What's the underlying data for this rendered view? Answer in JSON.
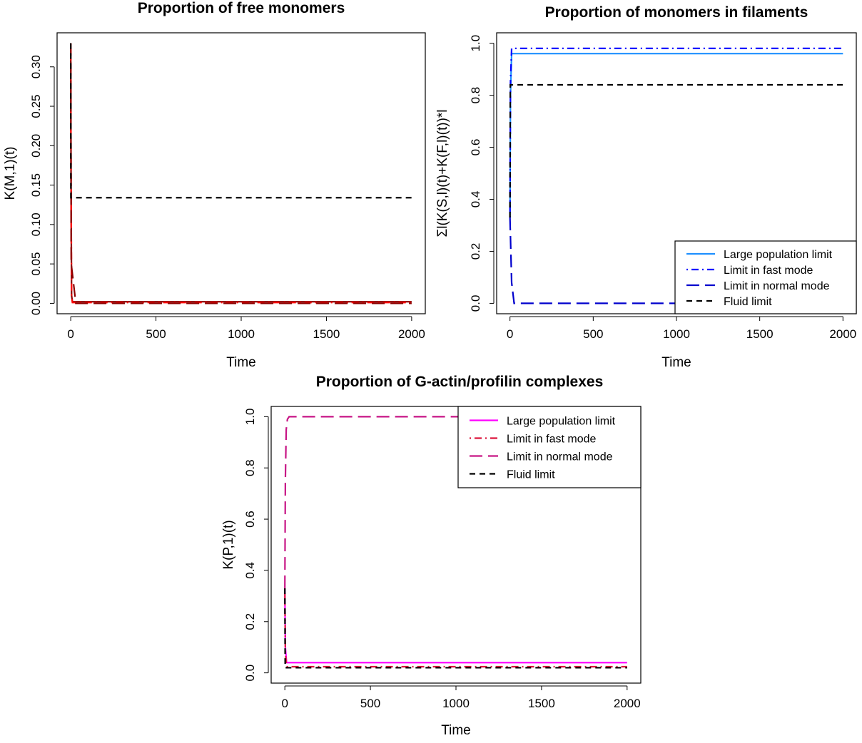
{
  "colors": {
    "dark_red": "#8B0000",
    "red": "#FF0000",
    "light_blue": "#1E90FF",
    "blue": "#0000FF",
    "dark_blue": "#0000CD",
    "magenta": "#FF00FF",
    "crimson": "#DC143C",
    "deep_pink": "#C71585",
    "black": "#000000"
  },
  "chart_data": [
    {
      "type": "line",
      "title": "Proportion of free monomers",
      "xlabel": "Time",
      "ylabel": "K(M,1)(t)",
      "xlim": [
        0,
        2000
      ],
      "ylim": [
        0,
        0.33
      ],
      "xticks": [
        "0",
        "500",
        "1000",
        "1500",
        "2000"
      ],
      "yticks": [
        "0.00",
        "0.05",
        "0.10",
        "0.15",
        "0.20",
        "0.25",
        "0.30"
      ],
      "legend": null,
      "series": [
        {
          "style": "solid",
          "color": "#8B0000",
          "x": [
            0,
            2,
            5,
            10,
            2000
          ],
          "y": [
            0.33,
            0.15,
            0.01,
            0.002,
            0.002
          ]
        },
        {
          "style": "dotdash",
          "color": "#FF0000",
          "x": [
            0,
            2,
            5,
            10,
            2000
          ],
          "y": [
            0.33,
            0.15,
            0.01,
            0.001,
            0.001
          ]
        },
        {
          "style": "longdash",
          "color": "#8B0000",
          "x": [
            0,
            3,
            30,
            2000
          ],
          "y": [
            0.33,
            0.05,
            0.0,
            0.0
          ]
        },
        {
          "style": "dashed",
          "color": "#000000",
          "x": [
            0,
            1,
            5,
            2000
          ],
          "y": [
            0.33,
            0.134,
            0.134,
            0.134
          ]
        }
      ]
    },
    {
      "type": "line",
      "title": "Proportion of monomers in filaments",
      "xlabel": "Time",
      "ylabel": "Σl(K(S,l)(t)+K(F,l)(t))*l",
      "xlim": [
        0,
        2000
      ],
      "ylim": [
        0,
        1.0
      ],
      "xticks": [
        "0",
        "500",
        "1000",
        "1500",
        "2000"
      ],
      "yticks": [
        "0.0",
        "0.2",
        "0.4",
        "0.6",
        "0.8",
        "1.0"
      ],
      "legend": {
        "position": "bottom-right",
        "entries": [
          {
            "label": "Large population limit",
            "style": "solid",
            "color": "#1E90FF"
          },
          {
            "label": "Limit in fast mode",
            "style": "dotdash",
            "color": "#0000FF"
          },
          {
            "label": "Limit in normal mode",
            "style": "longdash",
            "color": "#0000CD"
          },
          {
            "label": "Fluid limit",
            "style": "dashed",
            "color": "#000000"
          }
        ]
      },
      "series": [
        {
          "name": "Large population limit",
          "style": "solid",
          "color": "#1E90FF",
          "x": [
            0,
            3,
            10,
            2000
          ],
          "y": [
            0.33,
            0.8,
            0.96,
            0.96
          ]
        },
        {
          "name": "Limit in fast mode",
          "style": "dotdash",
          "color": "#0000FF",
          "x": [
            0,
            3,
            10,
            2000
          ],
          "y": [
            0.33,
            0.85,
            0.98,
            0.98
          ]
        },
        {
          "name": "Limit in normal mode",
          "style": "longdash",
          "color": "#0000CD",
          "x": [
            0,
            10,
            25,
            2000
          ],
          "y": [
            0.33,
            0.08,
            0.0,
            0.0
          ]
        },
        {
          "name": "Fluid limit",
          "style": "dashed",
          "color": "#000000",
          "x": [
            0,
            2,
            5,
            2000
          ],
          "y": [
            0.33,
            0.84,
            0.84,
            0.84
          ]
        }
      ]
    },
    {
      "type": "line",
      "title": "Proportion of G-actin/profilin complexes",
      "xlabel": "Time",
      "ylabel": "K(P,1)(t)",
      "xlim": [
        0,
        2000
      ],
      "ylim": [
        0,
        1.0
      ],
      "xticks": [
        "0",
        "500",
        "1000",
        "1500",
        "2000"
      ],
      "yticks": [
        "0.0",
        "0.2",
        "0.4",
        "0.6",
        "0.8",
        "1.0"
      ],
      "legend": {
        "position": "top-right",
        "entries": [
          {
            "label": "Large population limit",
            "style": "solid",
            "color": "#FF00FF"
          },
          {
            "label": "Limit in fast mode",
            "style": "dotdash",
            "color": "#DC143C"
          },
          {
            "label": "Limit in normal mode",
            "style": "longdash",
            "color": "#C71585"
          },
          {
            "label": "Fluid limit",
            "style": "dashed",
            "color": "#000000"
          }
        ]
      },
      "series": [
        {
          "name": "Large population limit",
          "style": "solid",
          "color": "#FF00FF",
          "x": [
            0,
            3,
            10,
            2000
          ],
          "y": [
            0.33,
            0.1,
            0.04,
            0.04
          ]
        },
        {
          "name": "Limit in fast mode",
          "style": "dotdash",
          "color": "#DC143C",
          "x": [
            0,
            3,
            10,
            2000
          ],
          "y": [
            0.33,
            0.08,
            0.024,
            0.024
          ]
        },
        {
          "name": "Limit in normal mode",
          "style": "longdash",
          "color": "#C71585",
          "x": [
            0,
            3,
            8,
            15,
            25,
            2000
          ],
          "y": [
            0.33,
            0.75,
            0.95,
            0.99,
            1.0,
            1.0
          ]
        },
        {
          "name": "Fluid limit",
          "style": "dashed",
          "color": "#000000",
          "x": [
            0,
            2,
            5,
            2000
          ],
          "y": [
            0.33,
            0.02,
            0.02,
            0.02
          ]
        }
      ]
    }
  ]
}
